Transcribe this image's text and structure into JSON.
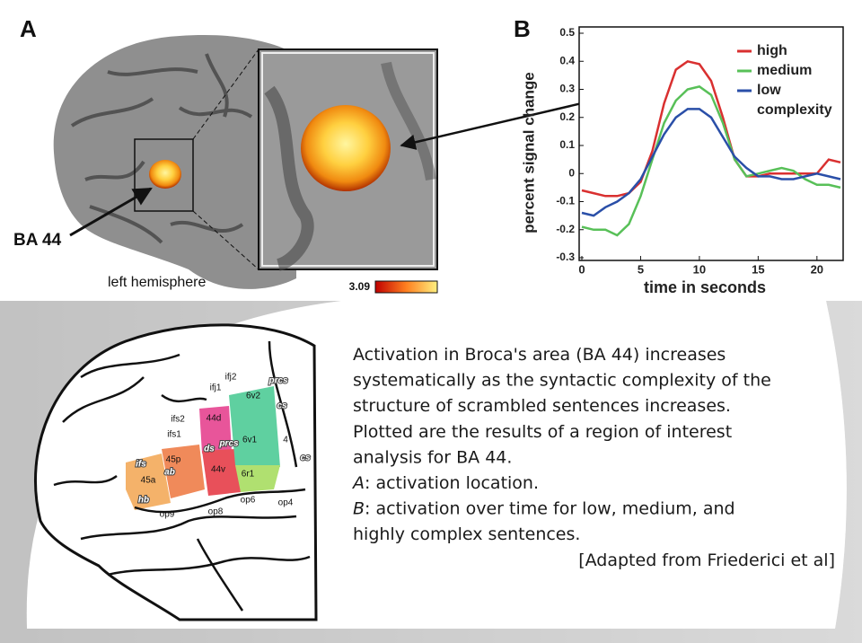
{
  "panel_a": {
    "label": "A",
    "pointer_label": "BA 44",
    "hemisphere_label": "left hemisphere",
    "colorbar_label": "3.09"
  },
  "chart_data": {
    "type": "line",
    "panel_label": "B",
    "y_label": "percent signal change",
    "x_label": "time in seconds",
    "x": [
      0,
      1,
      2,
      3,
      4,
      5,
      6,
      7,
      8,
      9,
      10,
      11,
      12,
      13,
      14,
      15,
      16,
      17,
      18,
      19,
      20,
      21,
      22
    ],
    "series": [
      {
        "name": "high",
        "color": "#d93030",
        "values": [
          -0.06,
          -0.07,
          -0.08,
          -0.08,
          -0.07,
          -0.03,
          0.08,
          0.25,
          0.37,
          0.4,
          0.39,
          0.33,
          0.2,
          0.05,
          -0.01,
          -0.01,
          0,
          0,
          0,
          0,
          0,
          0.05,
          0.04
        ]
      },
      {
        "name": "medium",
        "color": "#58c058",
        "values": [
          -0.19,
          -0.2,
          -0.2,
          -0.22,
          -0.18,
          -0.08,
          0.05,
          0.18,
          0.26,
          0.3,
          0.31,
          0.28,
          0.18,
          0.05,
          -0.01,
          0,
          0.01,
          0.02,
          0.01,
          -0.02,
          -0.04,
          -0.04,
          -0.05
        ]
      },
      {
        "name": "low",
        "color": "#2a4fa8",
        "values": [
          -0.14,
          -0.15,
          -0.12,
          -0.1,
          -0.07,
          -0.02,
          0.06,
          0.14,
          0.2,
          0.23,
          0.23,
          0.2,
          0.13,
          0.06,
          0.02,
          -0.01,
          -0.01,
          -0.02,
          -0.02,
          -0.01,
          0,
          -0.01,
          -0.02
        ]
      }
    ],
    "legend_note": "complexity",
    "xlim": [
      0,
      22
    ],
    "xticks": [
      0,
      5,
      10,
      15,
      20
    ],
    "ylim": [
      -0.3,
      0.5
    ],
    "yticks": [
      0.5,
      0.4,
      0.3,
      0.2,
      0.1,
      0,
      -0.1,
      -0.2,
      -0.3
    ],
    "legend": "upper right"
  },
  "brain_labels": [
    "ifj2",
    "ifj1",
    "6v2",
    "prcs",
    "cs",
    "ifs2",
    "44d",
    "ifs1",
    "6v1",
    "4",
    "ds",
    "prcs",
    "cs",
    "ifs",
    "45p",
    "ab",
    "44v",
    "6r1",
    "45a",
    "hb",
    "op9",
    "op8",
    "op6",
    "op4"
  ],
  "caption": {
    "lines": [
      "Activation in Broca's area (BA 44) increases",
      "systematically as the syntactic complexity of the",
      "structure of scrambled sentences increases.",
      "Plotted are the results of a region of interest",
      "analysis for BA 44."
    ],
    "item_a": {
      "label": "A",
      "text": ": activation location."
    },
    "item_b": {
      "label": "B",
      "text": ": activation over time for low, medium, and",
      "continuation": "highly complex sentences."
    },
    "citation": "[Adapted from Friederici et al]"
  }
}
